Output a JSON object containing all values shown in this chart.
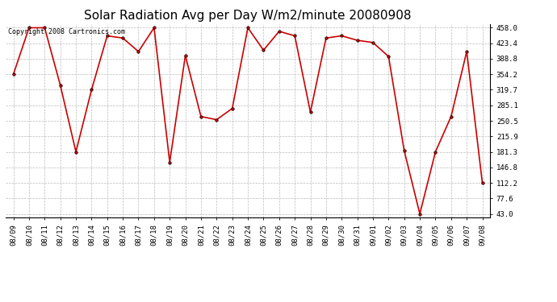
{
  "title": "Solar Radiation Avg per Day W/m2/minute 20080908",
  "copyright": "Copyright 2008 Cartronics.com",
  "labels": [
    "08/09",
    "08/10",
    "08/11",
    "08/12",
    "08/13",
    "08/14",
    "08/15",
    "08/16",
    "08/17",
    "08/18",
    "08/19",
    "08/20",
    "08/21",
    "08/22",
    "08/23",
    "08/24",
    "08/25",
    "08/26",
    "08/27",
    "08/28",
    "08/29",
    "08/30",
    "08/31",
    "09/01",
    "09/02",
    "09/03",
    "09/04",
    "09/05",
    "09/06",
    "09/07",
    "09/08"
  ],
  "values": [
    354.2,
    458.0,
    458.0,
    330.0,
    181.3,
    319.7,
    440.0,
    435.0,
    405.0,
    458.0,
    158.0,
    396.0,
    260.0,
    253.0,
    278.0,
    458.0,
    408.0,
    450.0,
    440.0,
    270.0,
    435.0,
    440.0,
    430.0,
    425.0,
    394.0,
    184.0,
    43.0,
    181.3,
    260.0,
    405.0,
    112.2
  ],
  "ymin": 43.0,
  "ymax": 458.0,
  "yticks": [
    43.0,
    77.6,
    112.2,
    146.8,
    181.3,
    215.9,
    250.5,
    285.1,
    319.7,
    354.2,
    388.8,
    423.4,
    458.0
  ],
  "line_color": "#cc0000",
  "marker_color": "#cc0000",
  "bg_color": "#ffffff",
  "grid_color": "#bbbbbb",
  "title_fontsize": 11,
  "copyright_fontsize": 6,
  "tick_fontsize": 6.5,
  "ytick_fontsize": 6.5
}
